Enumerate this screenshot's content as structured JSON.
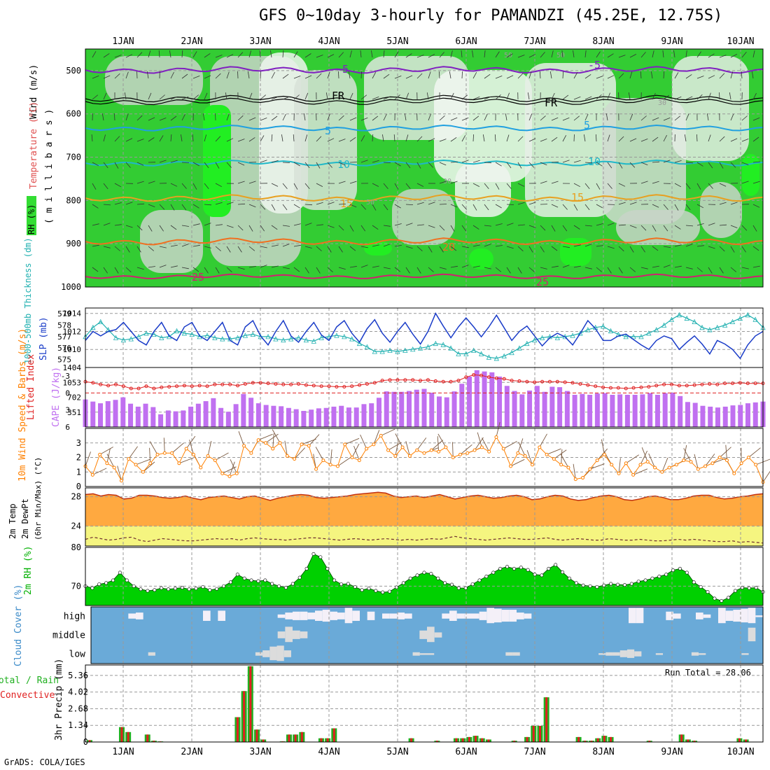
{
  "title": "GFS 0~10day 3-hourly for PAMANDZI (45.25E, 12.75S)",
  "footer": "GrADS: COLA/IGES",
  "colors": {
    "rh_green": "#00d000",
    "rh_dark": "#00a800",
    "orange": "#ffa940",
    "yellow": "#f5f580",
    "cloud_blue": "#6aaad8",
    "cape_purple": "#c070f0",
    "slp_blue": "#1a3cc8",
    "thk_cyan": "#20b0b0",
    "li_red": "#e02020",
    "precip_red": "#e02020",
    "precip_green": "#20b020"
  },
  "chart_data": [
    {
      "type": "heatmap",
      "name_panel": "upper",
      "ylabel_wind": "Wind (m/s)",
      "ylabel_temp": "Temperature (°C)",
      "ylabel_pres": "( m i l l i b a r s )",
      "legend_rh": "RH (%)",
      "x_labels": [
        "1JAN",
        "2JAN",
        "3JAN",
        "4JAN",
        "5JAN",
        "6JAN",
        "7JAN",
        "8JAN",
        "9JAN",
        "10JAN"
      ],
      "y_ticks": [
        500,
        600,
        700,
        800,
        900,
        1000
      ],
      "ylim": [
        1000,
        450
      ],
      "isotherm_labels": [
        "-5",
        "-5",
        "FR",
        "FR",
        "5",
        "5",
        "10",
        "10",
        "15",
        "15",
        "20",
        "25",
        "25"
      ],
      "rh_labels": [
        "50",
        "50",
        "30",
        "30",
        "50"
      ]
    },
    {
      "type": "line",
      "name_panel": "slp",
      "ylabel_slp": "SLP (mb)",
      "ylabel_thk": "1000-500mb Thickness (dm)",
      "left_ticks": [
        "579",
        "578",
        "577",
        "576",
        "575"
      ],
      "left_ticks_extra": "1404",
      "right_ticks": [
        "1014",
        "1012",
        "1010"
      ],
      "slp_ylim": [
        1008,
        1014.6
      ],
      "slp": [
        1011,
        1012,
        1011.5,
        1012,
        1012.2,
        1013,
        1012,
        1011,
        1010.5,
        1012,
        1013,
        1011.5,
        1011,
        1012.5,
        1013,
        1011.5,
        1011,
        1012,
        1013,
        1011,
        1010.5,
        1012.5,
        1013.2,
        1011.5,
        1010.5,
        1012,
        1013.2,
        1011.5,
        1010.8,
        1012,
        1013,
        1011.6,
        1011,
        1012.5,
        1013.2,
        1011.8,
        1010.8,
        1012.3,
        1013.3,
        1011.8,
        1010.8,
        1012,
        1013,
        1011.7,
        1010.6,
        1012,
        1014,
        1012.6,
        1011.3,
        1012.5,
        1013.5,
        1012.5,
        1011.4,
        1012.5,
        1013.8,
        1012.4,
        1011,
        1012,
        1012.6,
        1011.5,
        1010.4,
        1011.3,
        1011.8,
        1011.4,
        1010.5,
        1011.8,
        1013.2,
        1012.3,
        1011,
        1011,
        1011.5,
        1011.7,
        1011.1,
        1010.5,
        1010,
        1011,
        1011.5,
        1011.2,
        1010,
        1010.8,
        1011.5,
        1010.6,
        1009.5,
        1011,
        1010.6,
        1010,
        1009,
        1010.5,
        1011.5,
        1012
      ],
      "thk_ylim": [
        574.3,
        579.5
      ],
      "thickness": [
        577,
        577.8,
        578.3,
        577.6,
        576.9,
        576.7,
        576.8,
        577,
        577.3,
        577.2,
        576.9,
        577,
        577.5,
        577.3,
        577.2,
        577,
        577.1,
        576.9,
        576.8,
        576.8,
        576.9,
        577.1,
        577.2,
        577,
        577,
        576.8,
        576.7,
        576.8,
        576.9,
        576.7,
        576.6,
        576.9,
        577,
        577.1,
        577,
        576.8,
        576.4,
        576.1,
        575.7,
        575.7,
        575.8,
        575.7,
        575.8,
        575.9,
        576,
        576.1,
        576.4,
        576.3,
        576,
        575.5,
        575.5,
        575.8,
        575.5,
        575.2,
        575.1,
        575.3,
        575.6,
        576,
        576.4,
        576.7,
        576.9,
        577,
        576.9,
        577,
        577.1,
        577.3,
        577.6,
        577.8,
        577.9,
        577.5,
        577.2,
        577,
        577,
        577,
        577.3,
        577.6,
        578,
        578.5,
        578.9,
        578.6,
        578.3,
        577.8,
        577.6,
        577.8,
        578,
        578.3,
        578.6,
        578.9,
        578.5,
        577.8
      ]
    },
    {
      "type": "bar",
      "name_panel": "cape",
      "ylabel_li": "Lifted Index",
      "ylabel_cape": "CAPE (J/kg)",
      "li_ticks": [
        "-3",
        "0",
        "3",
        "6"
      ],
      "cape_ticks": [
        "1053",
        "702",
        "351"
      ],
      "cape_ylim": [
        0,
        1404
      ],
      "cape": [
        650,
        600,
        560,
        610,
        640,
        700,
        550,
        480,
        550,
        470,
        300,
        390,
        370,
        390,
        480,
        550,
        610,
        680,
        450,
        360,
        540,
        780,
        690,
        560,
        520,
        500,
        490,
        450,
        420,
        380,
        410,
        440,
        450,
        480,
        500,
        460,
        460,
        540,
        560,
        690,
        840,
        830,
        830,
        850,
        880,
        900,
        810,
        720,
        700,
        840,
        1020,
        1190,
        1340,
        1310,
        1290,
        1190,
        970,
        850,
        770,
        860,
        970,
        830,
        950,
        940,
        850,
        760,
        780,
        760,
        790,
        800,
        760,
        770,
        760,
        760,
        770,
        800,
        760,
        800,
        810,
        730,
        590,
        570,
        500,
        480,
        460,
        480,
        510,
        520,
        560,
        580,
        600
      ],
      "li_ylim": [
        6,
        -4.5
      ],
      "li": [
        -2,
        -1.8,
        -1.5,
        -1.3,
        -1.5,
        -1.2,
        -0.8,
        -0.8,
        -1.2,
        -0.8,
        -1,
        -1.1,
        -1.2,
        -1.3,
        -1.2,
        -1.3,
        -1.2,
        -1.5,
        -1.5,
        -1.5,
        -1.3,
        -1.6,
        -1.8,
        -1.8,
        -1.7,
        -1.6,
        -1.5,
        -1.5,
        -1.6,
        -1.4,
        -1.3,
        -1.2,
        -1.2,
        -1.1,
        -1.1,
        -1.2,
        -1.4,
        -1.6,
        -1.8,
        -2.2,
        -2.3,
        -2.3,
        -2.3,
        -2.3,
        -2.2,
        -2.3,
        -2.1,
        -2,
        -2,
        -2.2,
        -2.8,
        -3.2,
        -3.1,
        -2.8,
        -2.6,
        -2.5,
        -2.2,
        -2.1,
        -2,
        -1.9,
        -2,
        -2,
        -2,
        -1.9,
        -1.8,
        -1.6,
        -1.4,
        -1.2,
        -1,
        -0.9,
        -0.9,
        -0.8,
        -0.9,
        -1,
        -1.1,
        -1.3,
        -1.5,
        -1.5,
        -1.3,
        -1.3,
        -1.4,
        -1.5,
        -1.6,
        -1.5,
        -1.7,
        -1.7,
        -1.8,
        -1.7,
        -1.7,
        -1.7
      ]
    },
    {
      "type": "line",
      "name_panel": "wind10m",
      "ylabel": "10m Wind Speed & Barbs (m/s)",
      "y_ticks": [
        "0",
        "1",
        "2",
        "3"
      ],
      "ylim": [
        0,
        4
      ],
      "speed": [
        1.4,
        0.8,
        2.2,
        1.6,
        1.3,
        0.4,
        1.9,
        1.5,
        1,
        1.6,
        2.2,
        2.3,
        2.3,
        1.6,
        2.6,
        2.2,
        1.3,
        2.1,
        1.8,
        0.9,
        0.7,
        0.9,
        2.8,
        2.3,
        3.2,
        3,
        2.6,
        3,
        2.1,
        1.9,
        2.9,
        2.8,
        1.2,
        1.8,
        1.5,
        1.4,
        2.9,
        2,
        1.8,
        2.6,
        2.9,
        3.5,
        2.5,
        2.1,
        2.7,
        2.1,
        2.5,
        2.3,
        2.5,
        2.4,
        2.7,
        2,
        2.2,
        2.3,
        2.5,
        2.7,
        2.4,
        3.4,
        2.6,
        1.4,
        2.3,
        2.1,
        1.5,
        2.7,
        2.2,
        1.9,
        1.5,
        1.3,
        0.5,
        0.6,
        1.2,
        1.8,
        2.2,
        1.5,
        0.9,
        1.6,
        0.8,
        1.5,
        1.7,
        1.3,
        1,
        1.3,
        1.5,
        1.8,
        1.7,
        1.2,
        1.4,
        1.6,
        2,
        1.8,
        0.9,
        1.6,
        2,
        1.5,
        0.3
      ]
    },
    {
      "type": "area",
      "name_panel": "temp2m",
      "ylabel_temp": "2m Temp",
      "ylabel_dewpt": "2m DewPt",
      "ylabel_minmax": "(6hr Min/Max) (°C)",
      "y_ticks": [
        "28",
        "24"
      ],
      "ylim": [
        21.3,
        29.2
      ],
      "temp": [
        28.3,
        28.4,
        28.1,
        28.3,
        28.2,
        27.7,
        27.8,
        28.2,
        28.2,
        28.1,
        27.9,
        27.8,
        27.9,
        28.1,
        27.8,
        27.6,
        27.9,
        28,
        28.1,
        27.9,
        27.7,
        28,
        28.1,
        27.8,
        27.5,
        27.8,
        28,
        28.2,
        28.3,
        28.2,
        27.9,
        27.8,
        27.9,
        28,
        28.1,
        28.3,
        28.4,
        28.5,
        28.6,
        28.5,
        28.1,
        27.9,
        28,
        28.1,
        27.9,
        28.1,
        28.3,
        28,
        27.7,
        27.9,
        28.1,
        28.2,
        28,
        27.8,
        27.9,
        28.1,
        28.2,
        28,
        27.6,
        27.7,
        28,
        28.2,
        28.1,
        27.7,
        27.5,
        27.6,
        27.9,
        28.1,
        28.2,
        28,
        27.6,
        27.5,
        27.7,
        28,
        28.1,
        27.9,
        27.6,
        27.6,
        27.8,
        28.1,
        28.2,
        28.2,
        27.9,
        27.7,
        27.8,
        28,
        28.1,
        28.3,
        28.4
      ],
      "dewpt": [
        22.2,
        22.5,
        22.3,
        22.1,
        22.2,
        22.4,
        22.5,
        22.1,
        21.9,
        22.1,
        22.3,
        22.2,
        22.1,
        22,
        22,
        22.1,
        22.2,
        22.3,
        22.2,
        22.3,
        22.1,
        22.3,
        22.4,
        22.3,
        22.2,
        22.2,
        22.1,
        22.2,
        22.3,
        22.4,
        22.4,
        22.3,
        22.2,
        22.1,
        22.2,
        22.3,
        22.2,
        22.1,
        22.2,
        22.3,
        22.2,
        22.1,
        22.2,
        22.1,
        22.2,
        22.3,
        22.2,
        22.4,
        22.6,
        22.4,
        22.3,
        22.2,
        22.1,
        22.2,
        22.3,
        22.4,
        22.3,
        22.2,
        22.2,
        22.3,
        22.4,
        22.2,
        22.1,
        22.2,
        22.3,
        22.2,
        22.1,
        22.1,
        22.3,
        22.2,
        22.1,
        22.1,
        22.2,
        22.1,
        22,
        22,
        22.1,
        22.2,
        22.1,
        22.2,
        22.1,
        22,
        21.9,
        21.9,
        22,
        21.8,
        21.9,
        21.8,
        21.7
      ]
    },
    {
      "type": "area",
      "name_panel": "rh2m",
      "ylabel": "2m RH (%)",
      "y_ticks": [
        "80",
        "70"
      ],
      "ylim": [
        65,
        80
      ],
      "rh": [
        70,
        69.5,
        70.5,
        70.8,
        71.5,
        73.5,
        71.5,
        70,
        69.2,
        68.8,
        69,
        69.5,
        69.2,
        69.4,
        69.6,
        69.2,
        69.4,
        69.8,
        69,
        69.3,
        70,
        71,
        73,
        72,
        71.5,
        71.3,
        71.5,
        70.6,
        70,
        69.6,
        70.6,
        72.2,
        74.5,
        78.3,
        77.5,
        74.5,
        71.5,
        70.5,
        70.6,
        69.8,
        69,
        69.4,
        68.8,
        68.4,
        68.6,
        69.7,
        70.8,
        72,
        72.8,
        73.5,
        73.2,
        72,
        70.8,
        70.4,
        69.5,
        69.5,
        70.5,
        71.5,
        72.5,
        73.5,
        74.5,
        75,
        74.5,
        74.8,
        74.2,
        73,
        72.8,
        74.5,
        75.5,
        73.6,
        72,
        70.8,
        70.2,
        70,
        69.8,
        70.2,
        70.6,
        70.4,
        70.3,
        70.6,
        71.2,
        71.5,
        72,
        72.5,
        73,
        74.1,
        74.5,
        73.5,
        71,
        69.8,
        68.5,
        66.8,
        66.2,
        67,
        68.8,
        69.6,
        69.5,
        69.6,
        68.5
      ]
    },
    {
      "type": "heatmap",
      "name_panel": "cloud",
      "ylabel": "Cloud Cover (%)",
      "rows": [
        "high",
        "middle",
        "low"
      ],
      "high": [
        0,
        0,
        0,
        0,
        0,
        0.3,
        0.4,
        0,
        0,
        0,
        0,
        0,
        0,
        0,
        0,
        0.6,
        0,
        0.6,
        0,
        0,
        0,
        0,
        0,
        0,
        0,
        0.2,
        0.4,
        0.5,
        0.5,
        0.4,
        0.6,
        0.7,
        0.5,
        0.4,
        0.9,
        0.6,
        0,
        0.5,
        0,
        0.3,
        0.3,
        0.4,
        0.3,
        0,
        0,
        0,
        0,
        0.3,
        0.6,
        0.3,
        0.3,
        0.3,
        0.5,
        0.9,
        0.8,
        0.7,
        0.7,
        0.4,
        0.3,
        0,
        0,
        0,
        0,
        0,
        0,
        0,
        0,
        0,
        0,
        0,
        0,
        0,
        0.9,
        0.9,
        0,
        0,
        0,
        0.5,
        0.3,
        0,
        0,
        0.4,
        0.2,
        0,
        0.9,
        0.6,
        0.7,
        0.8,
        0.9,
        0.1
      ],
      "middle": [
        0,
        0,
        0,
        0,
        0,
        0,
        0,
        0,
        0,
        0,
        0,
        0,
        0,
        0,
        0,
        0,
        0,
        0,
        0,
        0,
        0,
        0,
        0,
        0,
        0,
        0.4,
        0.9,
        0.5,
        0.4,
        0,
        0,
        0,
        0,
        0,
        0,
        0,
        0,
        0,
        0,
        0,
        0,
        0,
        0,
        0,
        0.5,
        0.9,
        0.3,
        0,
        0,
        0,
        0,
        0,
        0,
        0,
        0,
        0,
        0,
        0,
        0,
        0,
        0,
        0,
        0,
        0,
        0,
        0,
        0,
        0,
        0,
        0,
        0,
        0,
        0,
        0,
        0,
        0,
        0,
        0,
        0,
        0,
        0,
        0,
        0,
        0,
        0,
        0,
        0,
        0,
        0.8,
        0
      ],
      "low": [
        0,
        0,
        0,
        0,
        0,
        0,
        0,
        0,
        0.2,
        0,
        0,
        0,
        0,
        0,
        0,
        0,
        0,
        0,
        0,
        0,
        0,
        0,
        0,
        0.2,
        0.4,
        0.8,
        0.9,
        0.4,
        0,
        0,
        0,
        0,
        0,
        0,
        0,
        0,
        0,
        0,
        0,
        0,
        0,
        0,
        0,
        0,
        0,
        0.2,
        0.1,
        0.1,
        0,
        0,
        0,
        0,
        0,
        0,
        0,
        0,
        0,
        0,
        0.2,
        0.2,
        0,
        0,
        0,
        0,
        0,
        0,
        0,
        0,
        0,
        0,
        0,
        0.1,
        0.2,
        0.2,
        0.4,
        0.5,
        0.3,
        0,
        0,
        0.1,
        0,
        0,
        0,
        0,
        0.2,
        0.1,
        0,
        0,
        0,
        0,
        0,
        0.1,
        0,
        0
      ]
    },
    {
      "type": "bar",
      "name_panel": "precip",
      "ylabel_total": "Total / Rain",
      "ylabel_conv": "Convective",
      "ylabel": "3hr Precip (mm)",
      "run_total": "Run Total = 28.06",
      "y_ticks": [
        "0",
        "1.34",
        "2.68",
        "4.02",
        "5.36"
      ],
      "ylim": [
        0,
        6.2
      ],
      "precip": [
        0.15,
        0,
        0,
        0,
        0,
        1.2,
        0.8,
        0,
        0,
        0.6,
        0.1,
        0.05,
        0,
        0,
        0,
        0,
        0,
        0,
        0,
        0,
        0,
        0,
        0,
        2,
        4.1,
        6.1,
        1,
        0.2,
        0,
        0,
        0.05,
        0.6,
        0.6,
        0.8,
        0,
        0,
        0.3,
        0.3,
        1.1,
        0,
        0,
        0,
        0,
        0,
        0,
        0,
        0,
        0,
        0,
        0,
        0.3,
        0,
        0,
        0,
        0.1,
        0,
        0,
        0.3,
        0.3,
        0.4,
        0.5,
        0.3,
        0.2,
        0,
        0,
        0,
        0.1,
        0,
        0.4,
        1.3,
        1.3,
        3.6,
        0,
        0,
        0,
        0,
        0.4,
        0.1,
        0.1,
        0.3,
        0.5,
        0.4,
        0,
        0,
        0,
        0,
        0,
        0.1,
        0,
        0,
        0,
        0,
        0.6,
        0.2,
        0.1,
        0,
        0,
        0,
        0,
        0,
        0,
        0.3,
        0.2,
        0,
        0
      ]
    }
  ]
}
